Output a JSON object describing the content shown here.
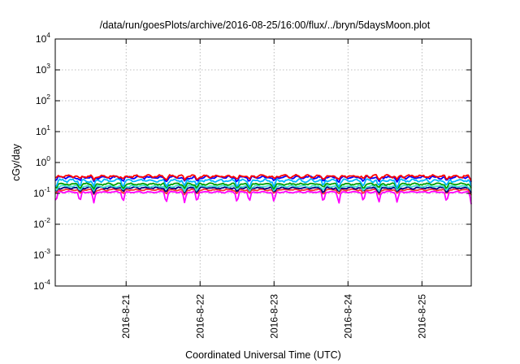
{
  "chart_data": {
    "type": "line",
    "title": "/data/run/goesPlots/archive/2016-08-25/16:00/flux/../bryn/5daysMoon.plot",
    "xlabel": "Coordinated Universal Time (UTC)",
    "ylabel": "cGy/day",
    "yscale": "log",
    "ylim": [
      0.0001,
      10000
    ],
    "y_ticks": [
      {
        "base": "10",
        "exp": "-4",
        "value": 0.0001
      },
      {
        "base": "10",
        "exp": "-3",
        "value": 0.001
      },
      {
        "base": "10",
        "exp": "-2",
        "value": 0.01
      },
      {
        "base": "10",
        "exp": "-1",
        "value": 0.1
      },
      {
        "base": "10",
        "exp": "0",
        "value": 1
      },
      {
        "base": "10",
        "exp": "1",
        "value": 10
      },
      {
        "base": "10",
        "exp": "2",
        "value": 100
      },
      {
        "base": "10",
        "exp": "3",
        "value": 1000
      },
      {
        "base": "10",
        "exp": "4",
        "value": 10000
      }
    ],
    "xlim": [
      "2016-08-20 01:00",
      "2016-08-25 16:00"
    ],
    "x_ticks": [
      {
        "label": "2016-8-21",
        "value": "2016-08-21 00:00"
      },
      {
        "label": "2016-8-22",
        "value": "2016-08-22 00:00"
      },
      {
        "label": "2016-8-23",
        "value": "2016-08-23 00:00"
      },
      {
        "label": "2016-8-24",
        "value": "2016-08-24 00:00"
      },
      {
        "label": "2016-8-25",
        "value": "2016-08-25 00:00"
      }
    ],
    "grid": true,
    "legend": "none",
    "series": [
      {
        "color": "#ff0000",
        "level": 0.36,
        "variation": 0.07,
        "dip_depth": 0.25
      },
      {
        "color": "#0000ff",
        "level": 0.33,
        "variation": 0.07,
        "dip_depth": 0.3
      },
      {
        "color": "#00b4ff",
        "level": 0.26,
        "variation": 0.08,
        "dip_depth": 0.4
      },
      {
        "color": "#00a000",
        "level": 0.2,
        "variation": 0.05,
        "dip_depth": 0.3
      },
      {
        "color": "#40e0d0",
        "level": 0.17,
        "variation": 0.05,
        "dip_depth": 0.3
      },
      {
        "color": "#000080",
        "level": 0.15,
        "variation": 0.05,
        "dip_depth": 0.3
      },
      {
        "color": "#ff3030",
        "level": 0.13,
        "variation": 0.04,
        "dip_depth": 0.3
      },
      {
        "color": "#ff00ff",
        "level": 0.11,
        "variation": 0.04,
        "dip_depth": 0.6
      }
    ],
    "dips": [
      0.2,
      8.0,
      12.5,
      22.0,
      36.0,
      42.0,
      46.0,
      59.0,
      63.0,
      71.0,
      87.0,
      92.0,
      100.0,
      105.0,
      111.0,
      127.0,
      135.0,
      138.5
    ]
  }
}
